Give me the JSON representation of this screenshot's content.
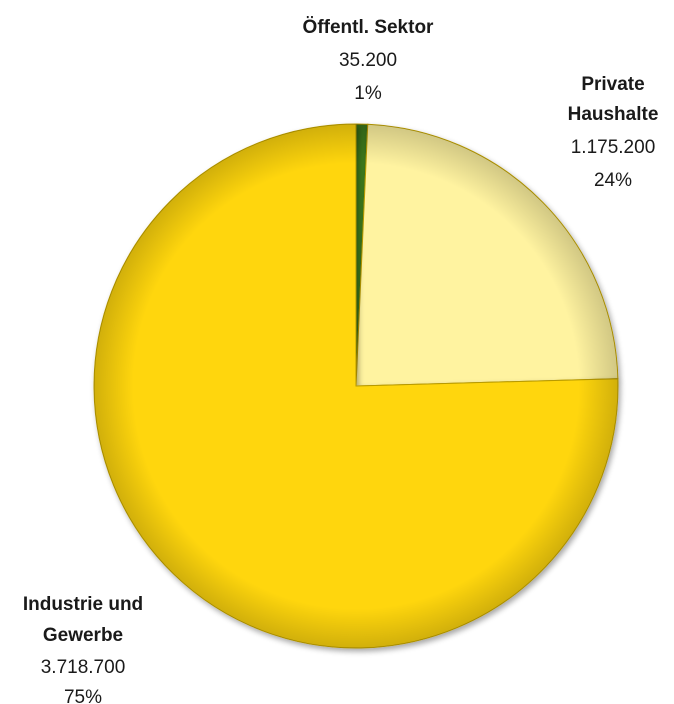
{
  "chart_data": {
    "type": "pie",
    "title": "",
    "start_angle_deg": 0,
    "direction": "clockwise",
    "slices": [
      {
        "name_lines": [
          "Öffentl. Sektor"
        ],
        "value": 35200,
        "value_label": "35.200",
        "percent_label": "1%",
        "color": "#3d7a1a"
      },
      {
        "name_lines": [
          "Private",
          "Haushalte"
        ],
        "value": 1175200,
        "value_label": "1.175.200",
        "percent_label": "24%",
        "color": "#fff3a0"
      },
      {
        "name_lines": [
          "Industrie und",
          "Gewerbe"
        ],
        "value": 3718700,
        "value_label": "3.718.700",
        "percent_label": "75%",
        "color": "#ffd60a"
      }
    ],
    "legend": "none"
  }
}
